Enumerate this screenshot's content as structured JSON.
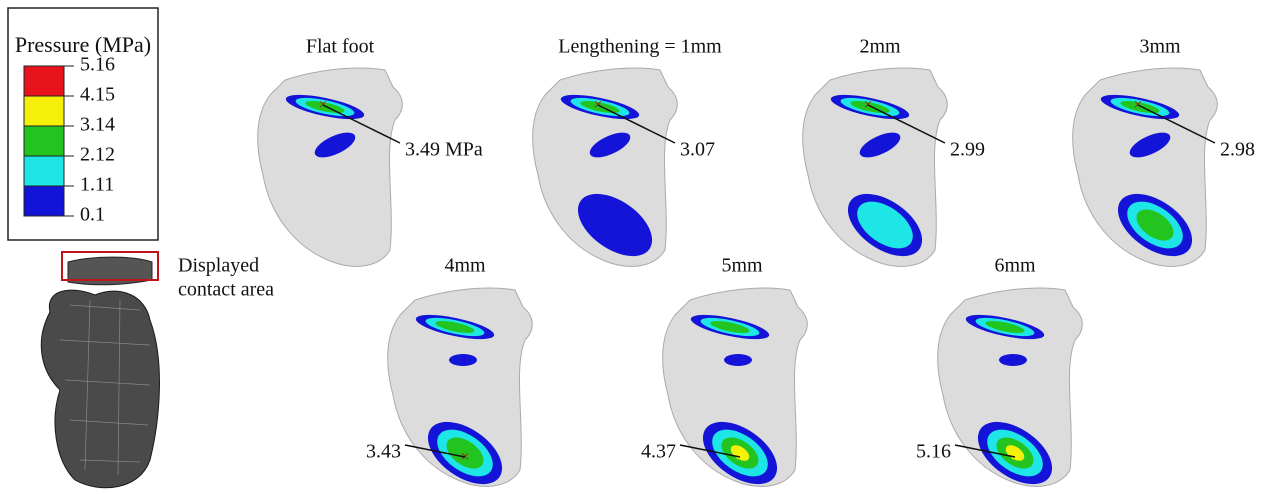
{
  "legend": {
    "title": "Pressure (MPa)",
    "labels": [
      "5.16",
      "4.15",
      "3.14",
      "2.12",
      "1.11",
      "0.1"
    ]
  },
  "note": {
    "lines": [
      "Displayed",
      "contact area"
    ]
  },
  "panels": [
    {
      "title": "Flat foot",
      "peak": "3.49 MPa"
    },
    {
      "title": "Lengthening = 1mm",
      "peak": "3.07"
    },
    {
      "title": "2mm",
      "peak": "2.99"
    },
    {
      "title": "3mm",
      "peak": "2.98"
    },
    {
      "title": "4mm",
      "peak": "3.43"
    },
    {
      "title": "5mm",
      "peak": "4.37"
    },
    {
      "title": "6mm",
      "peak": "5.16"
    }
  ]
}
